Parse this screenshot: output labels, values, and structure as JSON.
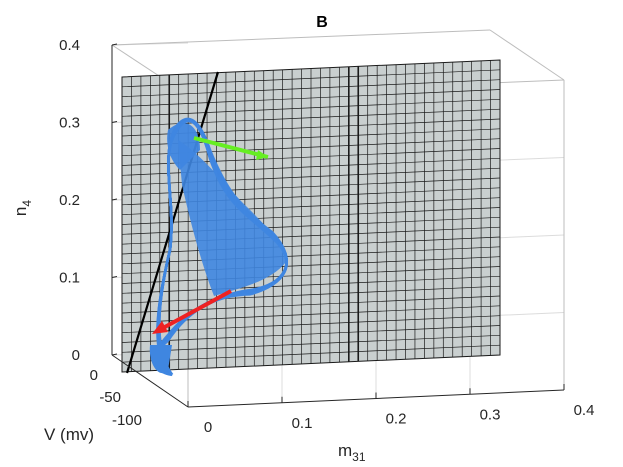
{
  "chart_data": {
    "type": "3d-surface-trajectory",
    "title": "B",
    "xlabel": "m",
    "xlabel_sub": "31",
    "ylabel": "V (mv)",
    "zlabel": "n",
    "zlabel_sub": "4",
    "x_ticks": [
      "0",
      "0.1",
      "0.2",
      "0.3",
      "0.4"
    ],
    "y_ticks": [
      "0",
      "-50",
      "-100"
    ],
    "z_ticks": [
      "0",
      "0.1",
      "0.2",
      "0.3",
      "0.4"
    ],
    "xlim": [
      0,
      0.4
    ],
    "ylim": [
      -100,
      0
    ],
    "zlim": [
      0,
      0.4
    ],
    "grid": true,
    "colors": {
      "trajectory": "#3f86e0",
      "plane_face": "#c9cfcf",
      "plane_mesh": "#1a1a1a",
      "line": "#000000",
      "green_arrow": "#66ee22",
      "red_arrow": "#ee2222"
    }
  }
}
